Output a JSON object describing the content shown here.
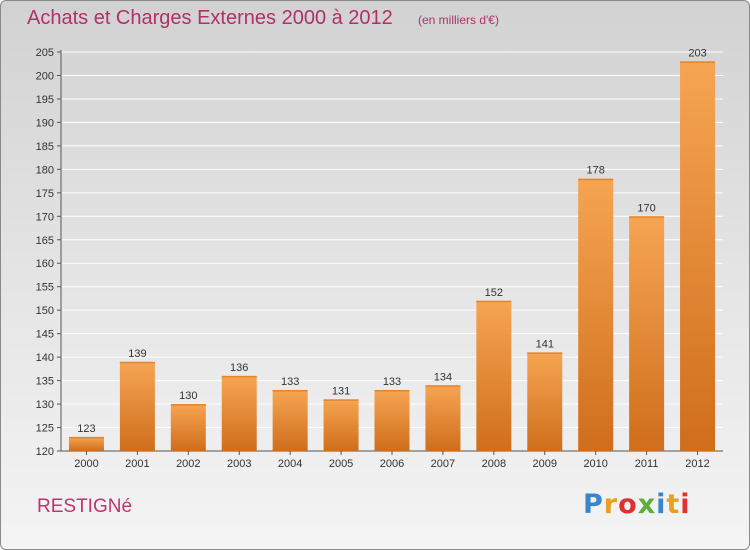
{
  "title": "Achats et Charges Externes 2000 à 2012",
  "subtitle": "(en milliers d'€)",
  "commune": "RESTIGNé",
  "logo": {
    "text": "Proxiti",
    "letter_colors": [
      "#3a86c8",
      "#e8a020",
      "#e03030",
      "#5ab035",
      "#3a86c8",
      "#e8a020",
      "#e03030"
    ]
  },
  "colors": {
    "title": "#b0306a",
    "bar_light": "#f6a552",
    "bar_dark": "#cf6e1c",
    "grid": "#ffffff"
  },
  "chart_data": {
    "type": "bar",
    "categories": [
      "2000",
      "2001",
      "2002",
      "2003",
      "2004",
      "2005",
      "2006",
      "2007",
      "2008",
      "2009",
      "2010",
      "2011",
      "2012"
    ],
    "values": [
      123,
      139,
      130,
      136,
      133,
      131,
      133,
      134,
      152,
      141,
      178,
      170,
      203
    ],
    "title": "Achats et Charges Externes 2000 à 2012",
    "xlabel": "",
    "ylabel": "",
    "ylim": [
      120,
      205
    ],
    "yticks": [
      120,
      125,
      130,
      135,
      140,
      145,
      150,
      155,
      160,
      165,
      170,
      175,
      180,
      185,
      190,
      195,
      200,
      205
    ],
    "grid": true,
    "data_labels": true
  }
}
